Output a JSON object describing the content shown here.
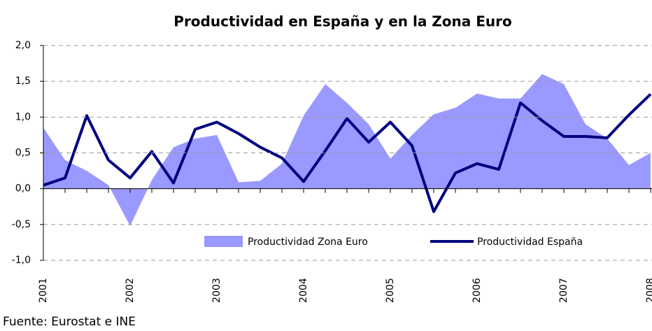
{
  "chart_data": {
    "type": "line_area",
    "title": "Productividad en España y en la Zona Euro",
    "source": "Fuente: Eurostat e INE",
    "categories": [
      "2001",
      null,
      null,
      null,
      "2002",
      null,
      null,
      null,
      "2003",
      null,
      null,
      null,
      "2004",
      null,
      null,
      null,
      "2005",
      null,
      null,
      null,
      "2006",
      null,
      null,
      null,
      "2007",
      null,
      null,
      null,
      "2008"
    ],
    "series": [
      {
        "name": "Productividad Zona Euro",
        "kind": "area",
        "color": "#9999ff",
        "values": [
          0.85,
          0.4,
          0.25,
          0.05,
          -0.52,
          0.12,
          0.58,
          0.7,
          0.75,
          0.09,
          0.11,
          0.35,
          1.02,
          1.46,
          1.2,
          0.9,
          0.42,
          0.75,
          1.04,
          1.13,
          1.33,
          1.26,
          1.26,
          1.6,
          1.46,
          0.9,
          0.7,
          0.33,
          0.5
        ]
      },
      {
        "name": "Productividad España",
        "kind": "line",
        "color": "#000080",
        "values": [
          0.05,
          0.15,
          1.02,
          0.4,
          0.15,
          0.52,
          0.08,
          0.83,
          0.93,
          0.77,
          0.58,
          0.43,
          0.1,
          0.53,
          0.98,
          0.65,
          0.93,
          0.6,
          -0.32,
          0.22,
          0.35,
          0.27,
          1.2,
          0.95,
          0.73,
          0.73,
          0.71,
          1.03,
          1.32
        ]
      }
    ],
    "ylim": [
      -1,
      2
    ],
    "yticks": [
      {
        "value": -1,
        "label": "-1,0"
      },
      {
        "value": -0.5,
        "label": "-0,5"
      },
      {
        "value": 0,
        "label": "0,0"
      },
      {
        "value": 0.5,
        "label": "0,5"
      },
      {
        "value": 1,
        "label": "1,0"
      },
      {
        "value": 1.5,
        "label": "1,5"
      },
      {
        "value": 2,
        "label": "2,0"
      }
    ],
    "grid": true,
    "legend": "lower right"
  }
}
